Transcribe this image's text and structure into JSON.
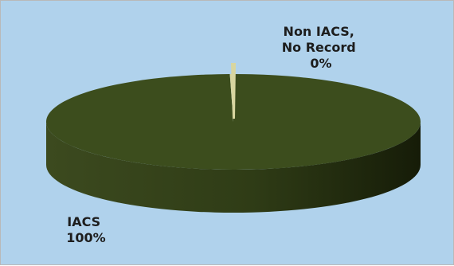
{
  "chart_data": {
    "type": "pie",
    "style": "3d",
    "slices": [
      {
        "label_line1": "IACS",
        "label_line2": "",
        "label_line3": "",
        "percent_label": "100%",
        "value": 99.7,
        "color": "#3c4d1d"
      },
      {
        "label_line1": "Non IACS,",
        "label_line2": "No Record",
        "label_line3": "",
        "percent_label": "0%",
        "value": 0.3,
        "color": "#d8d6a0"
      }
    ],
    "legend": "none",
    "background_color": "#b0d2ec"
  }
}
